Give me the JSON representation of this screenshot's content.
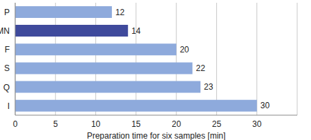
{
  "chart_data": {
    "type": "bar",
    "orientation": "horizontal",
    "categories": [
      "P",
      "MN",
      "F",
      "S",
      "Q",
      "I"
    ],
    "values": [
      12,
      14,
      20,
      22,
      23,
      30
    ],
    "colors": [
      "#8eaadc",
      "#3f4a9c",
      "#8eaadc",
      "#8eaadc",
      "#8eaadc",
      "#8eaadc"
    ],
    "xlabel": "Preparation time for six samples [min]",
    "xlim": [
      0,
      35
    ],
    "xticks": [
      0,
      5,
      10,
      15,
      20,
      25,
      30
    ],
    "grid": true,
    "data_labels": true
  }
}
